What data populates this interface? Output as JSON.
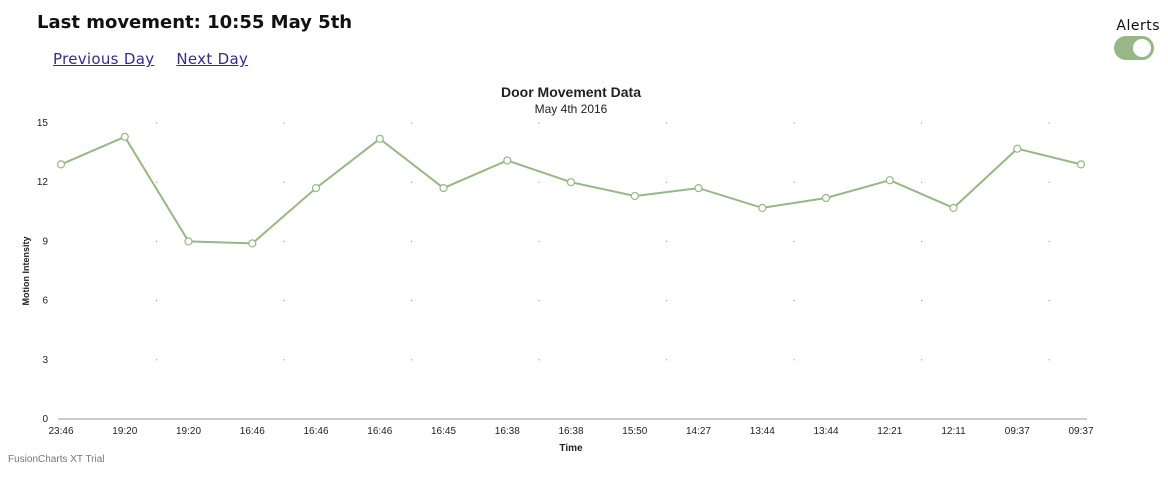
{
  "header": {
    "title": "Last movement: 10:55 May 5th"
  },
  "nav": {
    "previous_label": "Previous Day",
    "next_label": "Next Day"
  },
  "alerts": {
    "label": "Alerts",
    "enabled": true,
    "toggle_color": "#98b787"
  },
  "footer": {
    "trial_text": "FusionCharts XT Trial"
  },
  "colors": {
    "line": "#98b787",
    "marker_fill": "#ffffff",
    "axis": "#999999",
    "grid_dot": "#8a8a8a"
  },
  "chart_data": {
    "type": "line",
    "title": "Door Movement Data",
    "subtitle": "May 4th 2016",
    "xlabel": "Time",
    "ylabel": "Motion Intensity",
    "categories": [
      "23:46",
      "19:20",
      "19:20",
      "16:46",
      "16:46",
      "16:46",
      "16:45",
      "16:38",
      "16:38",
      "15:50",
      "14:27",
      "13:44",
      "13:44",
      "12:21",
      "12:11",
      "09:37",
      "09:37"
    ],
    "series": [
      {
        "values": [
          12.9,
          14.3,
          9.0,
          8.9,
          11.7,
          14.2,
          11.7,
          13.1,
          12.0,
          11.3,
          11.7,
          10.7,
          11.2,
          12.1,
          10.7,
          13.7,
          12.9
        ]
      }
    ],
    "ylim": [
      0,
      15
    ],
    "yticks": [
      0,
      3,
      6,
      9,
      12,
      15
    ],
    "grid": true,
    "legend": "none"
  }
}
